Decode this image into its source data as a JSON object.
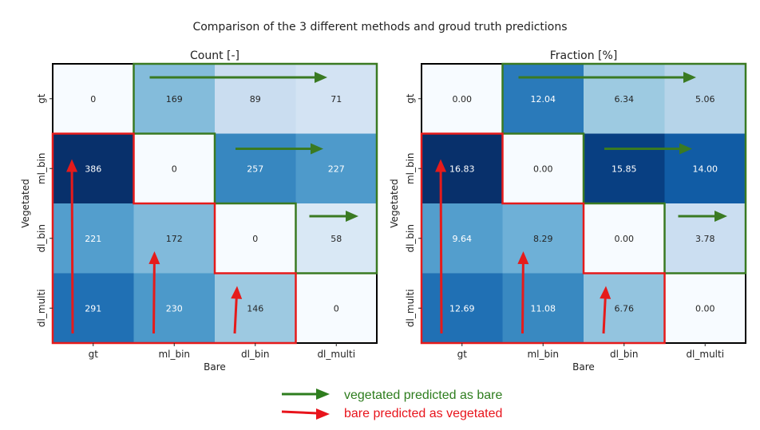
{
  "figure": {
    "title": "Comparison of the 3 different methods and groud truth predictions"
  },
  "chart_data": [
    {
      "type": "heatmap",
      "title": "Count [-]",
      "xlabel": "Bare",
      "ylabel": "Vegetated",
      "x_categories": [
        "gt",
        "ml_bin",
        "dl_bin",
        "dl_multi"
      ],
      "y_categories": [
        "gt",
        "ml_bin",
        "dl_bin",
        "dl_multi"
      ],
      "values": [
        [
          0,
          169,
          89,
          71
        ],
        [
          386,
          0,
          257,
          227
        ],
        [
          221,
          172,
          0,
          58
        ],
        [
          291,
          230,
          146,
          0
        ]
      ],
      "labels": [
        [
          "0",
          "169",
          "89",
          "71"
        ],
        [
          "386",
          "0",
          "257",
          "227"
        ],
        [
          "221",
          "172",
          "0",
          "58"
        ],
        [
          "291",
          "230",
          "146",
          "0"
        ]
      ],
      "colormap": "Blues",
      "vmax": 386
    },
    {
      "type": "heatmap",
      "title": "Fraction [%]",
      "xlabel": "Bare",
      "ylabel": "Vegetated",
      "x_categories": [
        "gt",
        "ml_bin",
        "dl_bin",
        "dl_multi"
      ],
      "y_categories": [
        "gt",
        "ml_bin",
        "dl_bin",
        "dl_multi"
      ],
      "values": [
        [
          0.0,
          12.04,
          6.34,
          5.06
        ],
        [
          16.83,
          0.0,
          15.85,
          14.0
        ],
        [
          9.64,
          8.29,
          0.0,
          3.78
        ],
        [
          12.69,
          11.08,
          6.76,
          0.0
        ]
      ],
      "labels": [
        [
          "0.00",
          "12.04",
          "6.34",
          "5.06"
        ],
        [
          "16.83",
          "0.00",
          "15.85",
          "14.00"
        ],
        [
          "9.64",
          "8.29",
          "0.00",
          "3.78"
        ],
        [
          "12.69",
          "11.08",
          "6.76",
          "0.00"
        ]
      ],
      "colormap": "Blues",
      "vmax": 16.83
    }
  ],
  "legend": {
    "items": [
      {
        "label": "vegetated predicted as bare",
        "color": "#2e7d1e"
      },
      {
        "label": "bare predicted as vegetated",
        "color": "#e8141c"
      }
    ]
  },
  "colors": {
    "upper_outline": "#3a7a22",
    "lower_outline": "#e51b1b",
    "frame": "#000000"
  }
}
